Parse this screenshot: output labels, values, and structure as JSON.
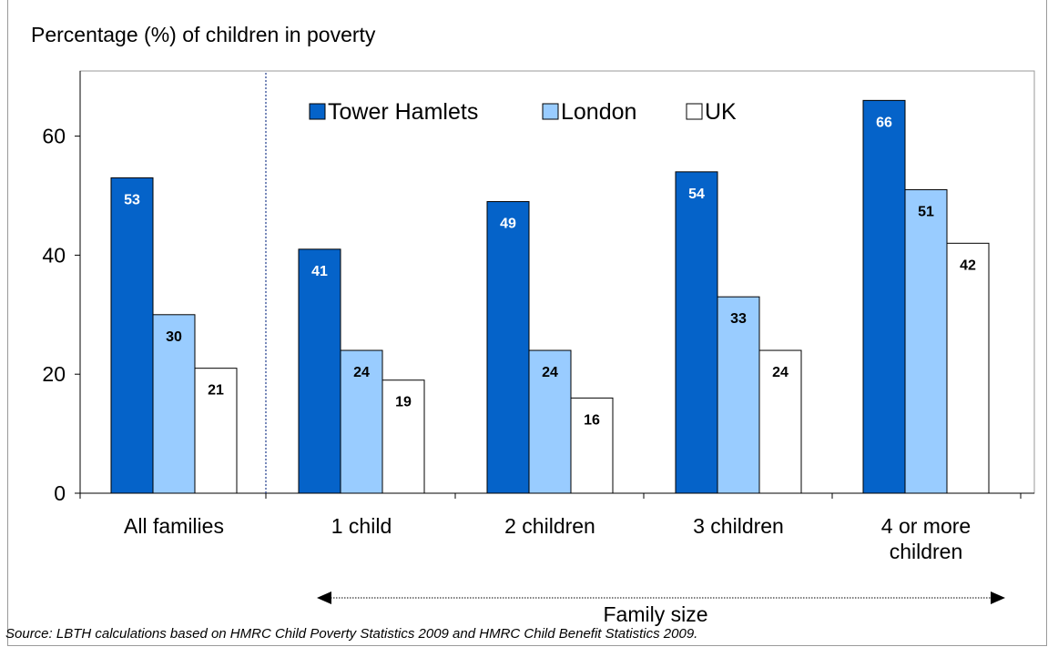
{
  "chart_data": {
    "type": "bar",
    "title": "Percentage (%) of children in poverty",
    "categories": [
      [
        "All families"
      ],
      [
        "1 child"
      ],
      [
        "2 children"
      ],
      [
        "3 children"
      ],
      [
        "4 or more",
        "children"
      ]
    ],
    "series": [
      {
        "name": "Tower Hamlets",
        "values": [
          53,
          41,
          49,
          54,
          66
        ],
        "color": "#0563c9",
        "label_color": "#ffffff"
      },
      {
        "name": "London",
        "values": [
          30,
          24,
          24,
          33,
          51
        ],
        "color": "#99ccff",
        "label_color": "#000000"
      },
      {
        "name": "UK",
        "values": [
          21,
          19,
          16,
          24,
          42
        ],
        "color": "#ffffff",
        "label_color": "#000000"
      }
    ],
    "ylim": [
      0,
      70
    ],
    "yticks": [
      0,
      20,
      40,
      60
    ],
    "group_axis_label": "Family size",
    "grid": false,
    "legend_position": "top"
  },
  "source": "Source: LBTH calculations based on HMRC Child Poverty Statistics 2009 and HMRC Child Benefit Statistics 2009."
}
